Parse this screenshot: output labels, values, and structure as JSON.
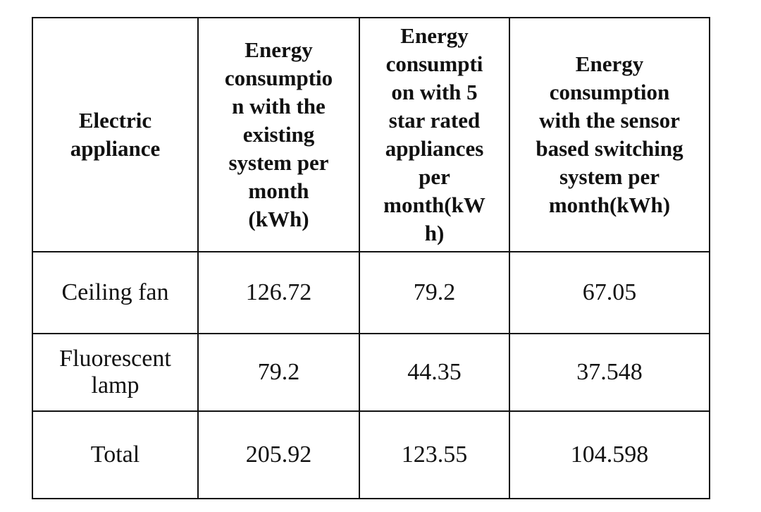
{
  "table": {
    "headers": [
      [
        "Electric",
        "appliance"
      ],
      [
        "Energy",
        "consumptio",
        "n with the",
        "existing",
        "system per",
        "month",
        "(kWh)"
      ],
      [
        "Energy",
        "consumpti",
        "on with 5",
        "star rated",
        "appliances",
        "per",
        "month(kW",
        "h)"
      ],
      [
        "Energy",
        "consumption",
        "with the sensor",
        "based switching",
        "system per",
        "month(kWh)"
      ]
    ],
    "rows": [
      {
        "appliance": "Ceiling fan",
        "existing": "126.72",
        "five_star": "79.2",
        "sensor": "67.05"
      },
      {
        "appliance_lines": [
          "Fluorescent",
          "lamp"
        ],
        "existing": "79.2",
        "five_star": "44.35",
        "sensor": "37.548"
      },
      {
        "appliance": "Total",
        "existing": "205.92",
        "five_star": "123.55",
        "sensor": "104.598"
      }
    ]
  }
}
